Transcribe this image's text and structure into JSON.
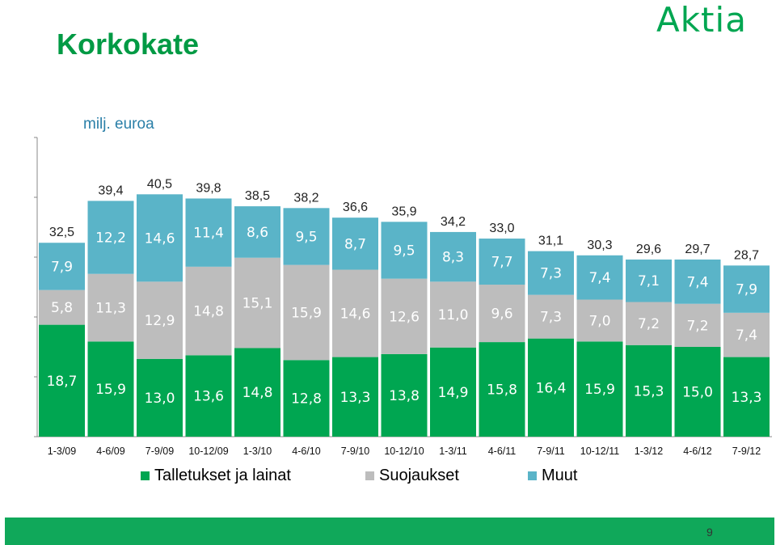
{
  "title": "Korkokate",
  "logo": "Aktia",
  "unit_label": "milj. euroa",
  "page_number": "9",
  "colors": {
    "talletukset": "#00a651",
    "suojaukset": "#bdbdbd",
    "muut": "#5ab4c8",
    "title": "#009a44",
    "footer": "#10a85a"
  },
  "chart_data": {
    "type": "bar",
    "stacked": true,
    "title": "Korkokate",
    "ylabel": "milj. euroa",
    "ylim": [
      0,
      50
    ],
    "categories": [
      "1-3/09",
      "4-6/09",
      "7-9/09",
      "10-12/09",
      "1-3/10",
      "4-6/10",
      "7-9/10",
      "10-12/10",
      "1-3/11",
      "4-6/11",
      "7-9/11",
      "10-12/11",
      "1-3/12",
      "4-6/12",
      "7-9/12"
    ],
    "series": [
      {
        "name": "Talletukset ja lainat",
        "values": [
          "18,7",
          "15,9",
          "13,0",
          "13,6",
          "14,8",
          "12,8",
          "13,3",
          "13,8",
          "14,9",
          "15,8",
          "16,4",
          "15,9",
          "15,3",
          "15,0",
          "13,3"
        ]
      },
      {
        "name": "Suojaukset",
        "values": [
          "5,8",
          "11,3",
          "12,9",
          "14,8",
          "15,1",
          "15,9",
          "14,6",
          "12,6",
          "11,0",
          "9,6",
          "7,3",
          "7,0",
          "7,2",
          "7,2",
          "7,4"
        ]
      },
      {
        "name": "Muut",
        "values": [
          "7,9",
          "12,2",
          "14,6",
          "11,4",
          "8,6",
          "9,5",
          "8,7",
          "9,5",
          "8,3",
          "7,7",
          "7,3",
          "7,4",
          "7,1",
          "7,4",
          "7,9"
        ]
      }
    ],
    "totals": [
      "32,5",
      "39,4",
      "40,5",
      "39,8",
      "38,5",
      "38,2",
      "36,6",
      "35,9",
      "34,2",
      "33,0",
      "31,1",
      "30,3",
      "29,6",
      "29,7",
      "28,7"
    ],
    "legend_position": "bottom"
  }
}
